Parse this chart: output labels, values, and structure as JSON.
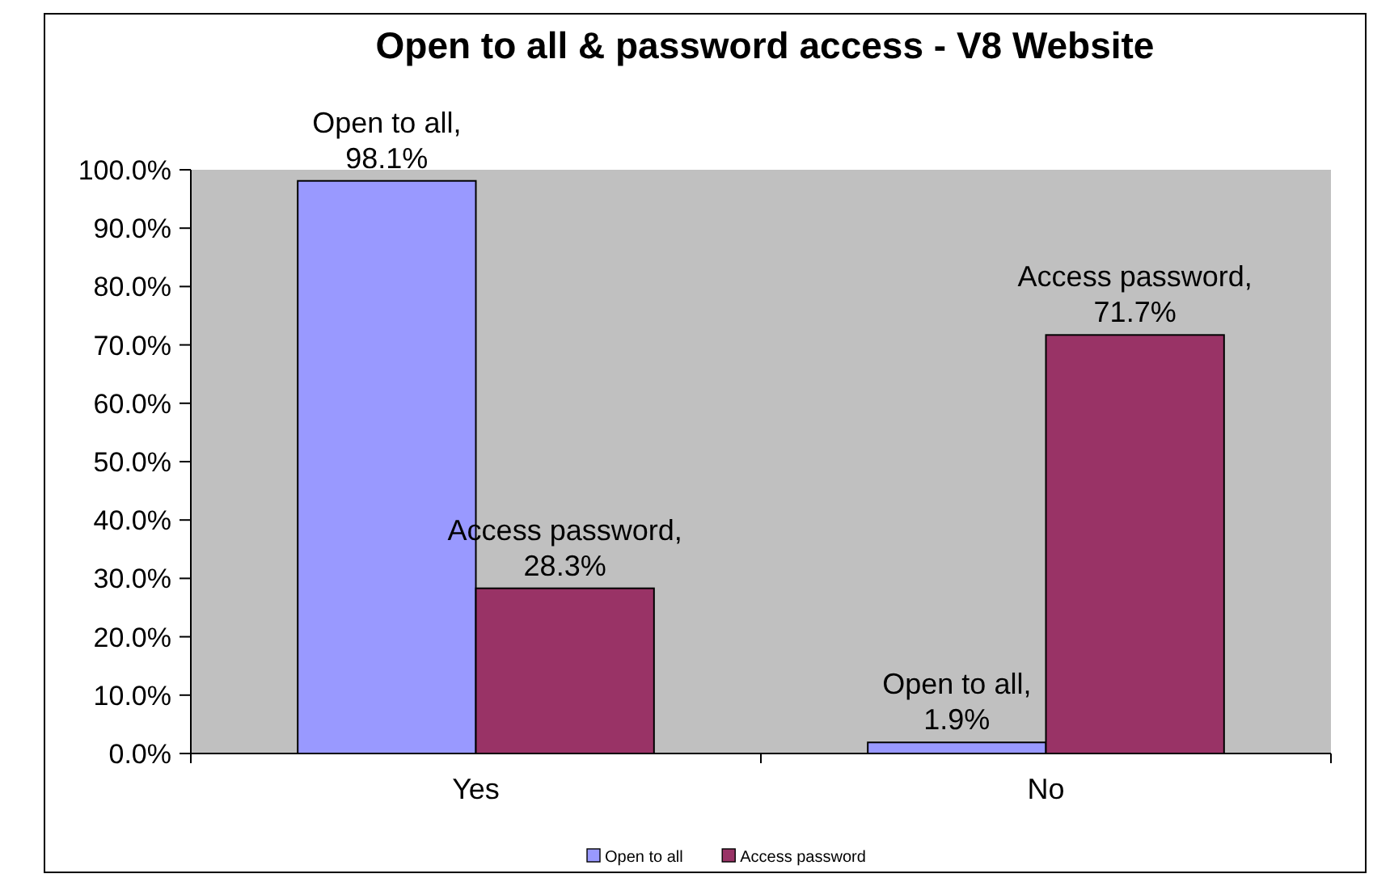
{
  "chart_data": {
    "type": "bar",
    "title": "Open to all & password access - V8 Website",
    "categories": [
      "Yes",
      "No"
    ],
    "series": [
      {
        "name": "Open to all",
        "color": "#9999ff",
        "values": [
          98.1,
          1.9
        ],
        "value_labels": [
          "Open to all, 98.1%",
          "Open to all, 1.9%"
        ]
      },
      {
        "name": "Access password",
        "color": "#993366",
        "values": [
          28.3,
          71.7
        ],
        "value_labels": [
          "Access password, 28.3%",
          "Access password, 71.7%"
        ]
      }
    ],
    "ylim": [
      0,
      100
    ],
    "yticks": [
      {
        "value": 0,
        "label": "0.0%"
      },
      {
        "value": 10,
        "label": "10.0%"
      },
      {
        "value": 20,
        "label": "20.0%"
      },
      {
        "value": 30,
        "label": "30.0%"
      },
      {
        "value": 40,
        "label": "40.0%"
      },
      {
        "value": 50,
        "label": "50.0%"
      },
      {
        "value": 60,
        "label": "60.0%"
      },
      {
        "value": 70,
        "label": "70.0%"
      },
      {
        "value": 80,
        "label": "80.0%"
      },
      {
        "value": 90,
        "label": "90.0%"
      },
      {
        "value": 100,
        "label": "100.0%"
      }
    ],
    "grid": false,
    "legend": "bottom"
  }
}
